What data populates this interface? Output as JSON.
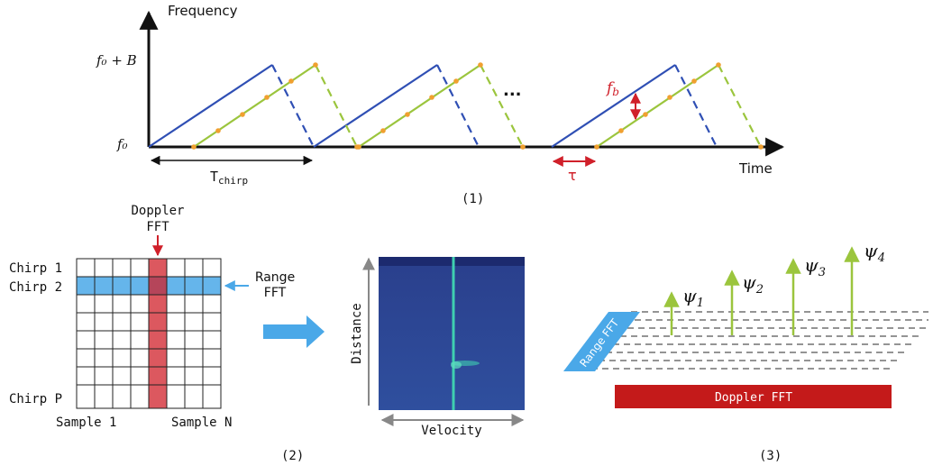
{
  "panel1": {
    "y_axis_label": "Frequency",
    "x_axis_label": "Time",
    "f0_plus_B": "f₀ + B",
    "f0": "f₀",
    "T_chirp_main": "T",
    "T_chirp_sub": "chirp",
    "tau": "τ",
    "fb_main": "f",
    "fb_sub": "b",
    "ellipsis": "...",
    "caption": "(1)"
  },
  "panel2": {
    "doppler_line1": "Doppler",
    "doppler_line2": "FFT",
    "chirp1": "Chirp 1",
    "chirp2": "Chirp 2",
    "chirpP": "Chirp P",
    "range_line1": "Range",
    "range_line2": "FFT",
    "sample1": "Sample 1",
    "sampleN": "Sample N",
    "distance": "Distance",
    "velocity": "Velocity",
    "caption": "(2)"
  },
  "panel3": {
    "range_fft": "Range FFT",
    "doppler_fft": "Doppler FFT",
    "psi": "ψ",
    "psi1_sub": "1",
    "psi2_sub": "2",
    "psi3_sub": "3",
    "psi4_sub": "4",
    "caption": "(3)"
  },
  "colors": {
    "tx_chirp": "#2f4fb4",
    "rx_chirp": "#9bc53d",
    "rx_points": "#f0a030",
    "accent_red": "#d0202a",
    "fft_blue": "#4aa8e8",
    "heatmap_bg": "#2d4a94",
    "heatmap_line": "#3fd0b0",
    "doppler_bar": "#c41a1a",
    "arrow_green": "#9bc53d"
  }
}
